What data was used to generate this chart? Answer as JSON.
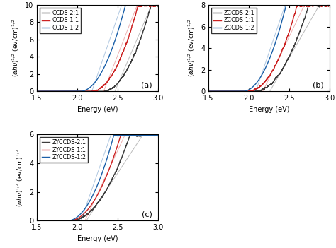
{
  "subplot_a": {
    "label": "(a)",
    "xlabel": "Energy (eV)",
    "xlim": [
      1.5,
      3.0
    ],
    "ylim": [
      0,
      10
    ],
    "yticks": [
      0,
      2,
      4,
      6,
      8,
      10
    ],
    "curves": [
      {
        "label": "CCDS-2:1",
        "color": "#3d3d3d",
        "bg": 2.32,
        "scale": 28.0,
        "noise": true,
        "seed": 1,
        "tan_x0": 2.52,
        "tan_x1": 2.72,
        "tan_slope": 22.0
      },
      {
        "label": "CCDS-1:1",
        "color": "#cc2222",
        "bg": 2.18,
        "scale": 30.0,
        "noise": true,
        "seed": 2,
        "tan_x0": 2.38,
        "tan_x1": 2.6,
        "tan_slope": 24.0
      },
      {
        "label": "CCDS-1:2",
        "color": "#1a5fa8",
        "bg": 2.04,
        "scale": 32.0,
        "noise": false,
        "seed": 3,
        "tan_x0": 2.22,
        "tan_x1": 2.5,
        "tan_slope": 27.0
      }
    ]
  },
  "subplot_b": {
    "label": "(b)",
    "xlabel": "Energy (eV)",
    "xlim": [
      1.5,
      3.0
    ],
    "ylim": [
      0,
      8
    ],
    "yticks": [
      0,
      2,
      4,
      6,
      8
    ],
    "curves": [
      {
        "label": "ZCCDS-2:1",
        "color": "#3d3d3d",
        "bg": 2.08,
        "scale": 18.0,
        "noise": true,
        "seed": 4,
        "tan_x0": 2.42,
        "tan_x1": 2.68,
        "tan_slope": 13.0
      },
      {
        "label": "ZCCDS-1:1",
        "color": "#cc2222",
        "bg": 2.0,
        "scale": 22.0,
        "noise": true,
        "seed": 5,
        "tan_x0": 2.32,
        "tan_x1": 2.58,
        "tan_slope": 15.5
      },
      {
        "label": "ZCCDS-1:2",
        "color": "#1a5fa8",
        "bg": 1.93,
        "scale": 28.0,
        "noise": false,
        "seed": 6,
        "tan_x0": 2.15,
        "tan_x1": 2.45,
        "tan_slope": 22.0
      }
    ]
  },
  "subplot_c": {
    "label": "(c)",
    "xlabel": "Energy (eV)",
    "xlim": [
      1.5,
      3.0
    ],
    "ylim": [
      0,
      6
    ],
    "yticks": [
      0,
      2,
      4,
      6
    ],
    "curves": [
      {
        "label": "ZYCCDS-2:1",
        "color": "#3d3d3d",
        "bg": 1.92,
        "scale": 11.0,
        "noise": true,
        "seed": 7,
        "tan_x0": 2.32,
        "tan_x1": 2.6,
        "tan_slope": 8.5
      },
      {
        "label": "ZYCCDS-1:1",
        "color": "#cc2222",
        "bg": 1.9,
        "scale": 14.5,
        "noise": false,
        "seed": 8,
        "tan_x0": 2.22,
        "tan_x1": 2.52,
        "tan_slope": 12.0
      },
      {
        "label": "ZYCCDS-1:2",
        "color": "#1a5fa8",
        "bg": 1.88,
        "scale": 18.0,
        "noise": false,
        "seed": 9,
        "tan_x0": 2.1,
        "tan_x1": 2.42,
        "tan_slope": 16.0
      }
    ]
  }
}
